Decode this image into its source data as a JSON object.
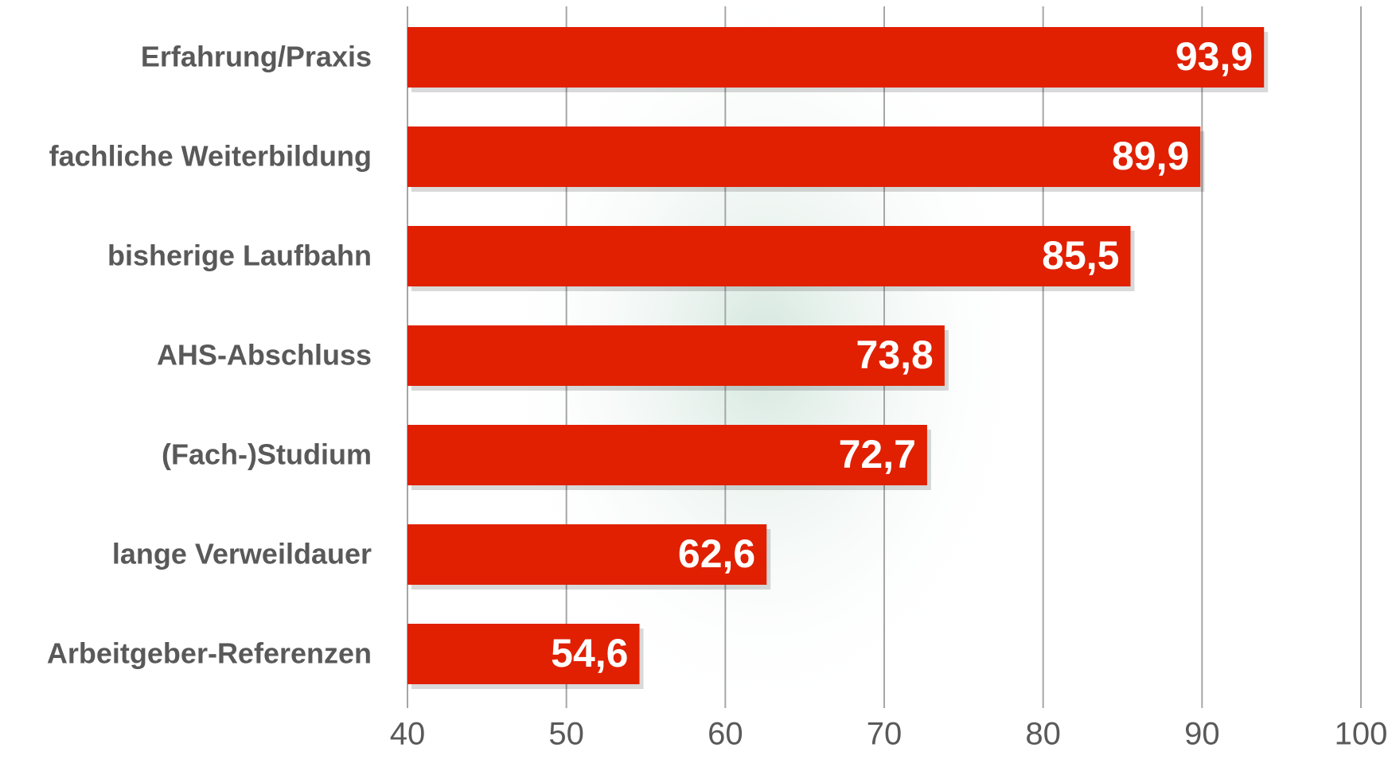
{
  "chart_data": {
    "type": "bar",
    "orientation": "horizontal",
    "categories": [
      "Erfahrung/Praxis",
      "fachliche Weiterbildung",
      "bisherige Laufbahn",
      "AHS-Abschluss",
      "(Fach-)Studium",
      "lange Verweildauer",
      "Arbeitgeber-Referenzen"
    ],
    "values": [
      93.9,
      89.9,
      85.5,
      73.8,
      72.7,
      62.6,
      54.6
    ],
    "value_labels": [
      "93,9",
      "89,9",
      "85,5",
      "73,8",
      "72,7",
      "62,6",
      "54,6"
    ],
    "color": "#e02000",
    "xlim": [
      40,
      100
    ],
    "xticks": [
      40,
      50,
      60,
      70,
      80,
      90,
      100
    ],
    "grid": true
  }
}
